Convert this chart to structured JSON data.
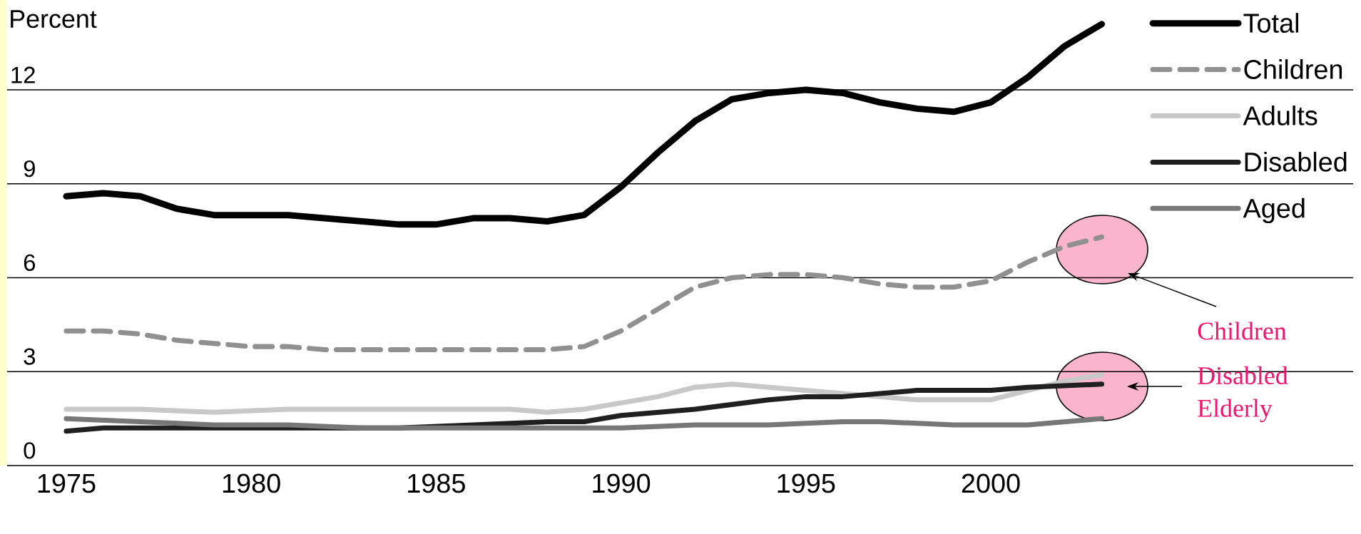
{
  "chart_data": {
    "type": "line",
    "ylabel": "Percent",
    "x": [
      1975,
      1976,
      1977,
      1978,
      1979,
      1980,
      1981,
      1982,
      1983,
      1984,
      1985,
      1986,
      1987,
      1988,
      1989,
      1990,
      1991,
      1992,
      1993,
      1994,
      1995,
      1996,
      1997,
      1998,
      1999,
      2000,
      2001,
      2002,
      2003
    ],
    "series": [
      {
        "name": "Total",
        "color": "#000000",
        "line_style": "solid",
        "values": [
          8.6,
          8.7,
          8.6,
          8.2,
          8.0,
          8.0,
          8.0,
          7.9,
          7.8,
          7.7,
          7.7,
          7.9,
          7.9,
          7.8,
          8.0,
          8.9,
          10.0,
          11.0,
          11.7,
          11.9,
          12.0,
          11.9,
          11.6,
          11.4,
          11.3,
          11.6,
          12.4,
          13.4,
          14.1
        ]
      },
      {
        "name": "Children",
        "color": "#909090",
        "line_style": "dashed",
        "values": [
          4.3,
          4.3,
          4.2,
          4.0,
          3.9,
          3.8,
          3.8,
          3.7,
          3.7,
          3.7,
          3.7,
          3.7,
          3.7,
          3.7,
          3.8,
          4.3,
          5.0,
          5.7,
          6.0,
          6.1,
          6.1,
          6.0,
          5.8,
          5.7,
          5.7,
          5.9,
          6.5,
          7.0,
          7.3
        ]
      },
      {
        "name": "Adults",
        "color": "#c8c8c8",
        "line_style": "solid",
        "x": [
          1975,
          1977,
          1979,
          1981,
          1983,
          1985,
          1987,
          1988,
          1989,
          1990,
          1991,
          1992,
          1993,
          1994,
          1995,
          1996,
          1997,
          1998,
          1999,
          2000,
          2001,
          2002,
          2003
        ],
        "values": [
          1.8,
          1.8,
          1.7,
          1.8,
          1.8,
          1.8,
          1.8,
          1.7,
          1.8,
          2.0,
          2.2,
          2.5,
          2.6,
          2.5,
          2.4,
          2.3,
          2.2,
          2.1,
          2.1,
          2.1,
          2.4,
          2.7,
          2.9
        ]
      },
      {
        "name": "Disabled",
        "color": "#202020",
        "line_style": "solid",
        "x": [
          1975,
          1976,
          1978,
          1980,
          1982,
          1984,
          1986,
          1988,
          1989,
          1990,
          1992,
          1994,
          1995,
          1996,
          1998,
          2000,
          2001,
          2003
        ],
        "values": [
          1.1,
          1.2,
          1.2,
          1.2,
          1.2,
          1.2,
          1.3,
          1.4,
          1.4,
          1.6,
          1.8,
          2.1,
          2.2,
          2.2,
          2.4,
          2.4,
          2.5,
          2.6
        ]
      },
      {
        "name": "Aged",
        "color": "#777777",
        "line_style": "solid",
        "x": [
          1975,
          1977,
          1979,
          1981,
          1983,
          1985,
          1987,
          1989,
          1990,
          1992,
          1994,
          1996,
          1997,
          1999,
          2001,
          2003
        ],
        "values": [
          1.5,
          1.4,
          1.3,
          1.3,
          1.2,
          1.2,
          1.2,
          1.2,
          1.2,
          1.3,
          1.3,
          1.4,
          1.4,
          1.3,
          1.3,
          1.5
        ]
      }
    ],
    "xlim": [
      1973.4,
      2009.8
    ],
    "ylim": [
      0,
      14.87
    ],
    "xticks": [
      1975,
      1980,
      1985,
      1990,
      1995,
      2000
    ],
    "yticks": [
      0,
      3,
      6,
      9,
      12
    ],
    "grid": "y",
    "legend": "top right",
    "marker": "none",
    "annotations": [
      "Children",
      "Disabled Elderly"
    ]
  }
}
